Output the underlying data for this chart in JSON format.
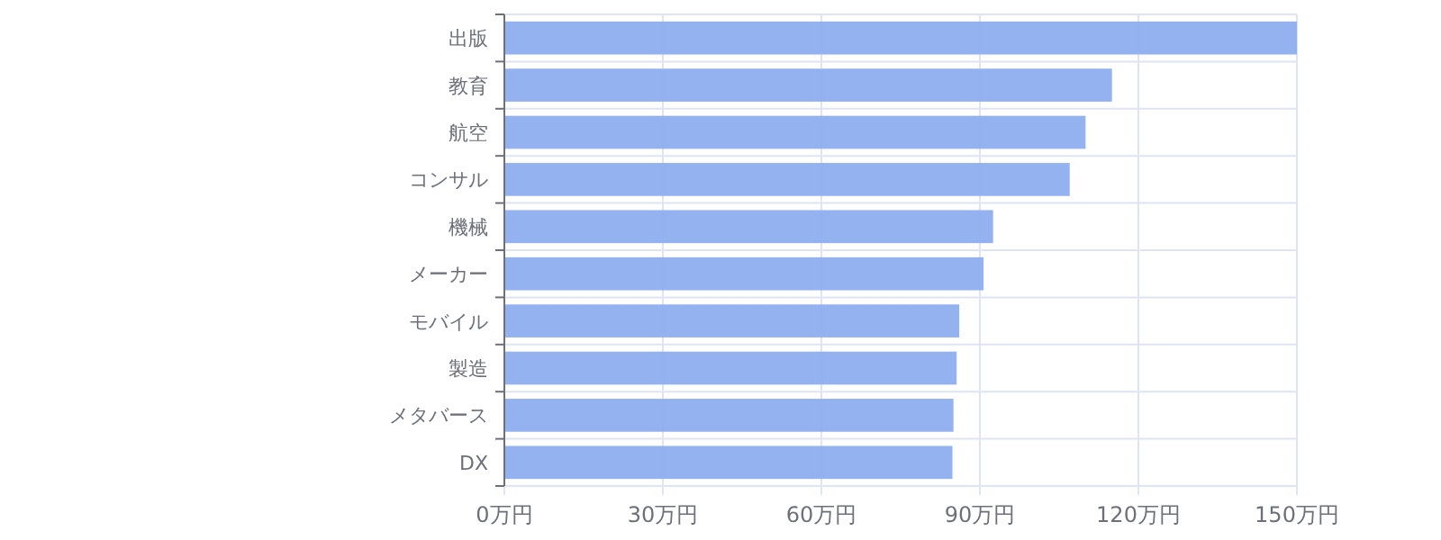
{
  "chart_data": {
    "type": "bar",
    "orientation": "horizontal",
    "categories": [
      "出版",
      "教育",
      "航空",
      "コンサル",
      "機械",
      "メーカー",
      "モバイル",
      "製造",
      "メタバース",
      "DX"
    ],
    "values": [
      150,
      115,
      110,
      107,
      92.5,
      90.7,
      86.1,
      85.6,
      85,
      84.8
    ],
    "color": "#8eaeef",
    "xlim": [
      0,
      150
    ],
    "xticks": [
      {
        "value": 0,
        "label": "0万円"
      },
      {
        "value": 30,
        "label": "30万円"
      },
      {
        "value": 60,
        "label": "60万円"
      },
      {
        "value": 90,
        "label": "90万円"
      },
      {
        "value": 120,
        "label": "120万円"
      },
      {
        "value": 150,
        "label": "150万円"
      }
    ],
    "grid": true
  }
}
